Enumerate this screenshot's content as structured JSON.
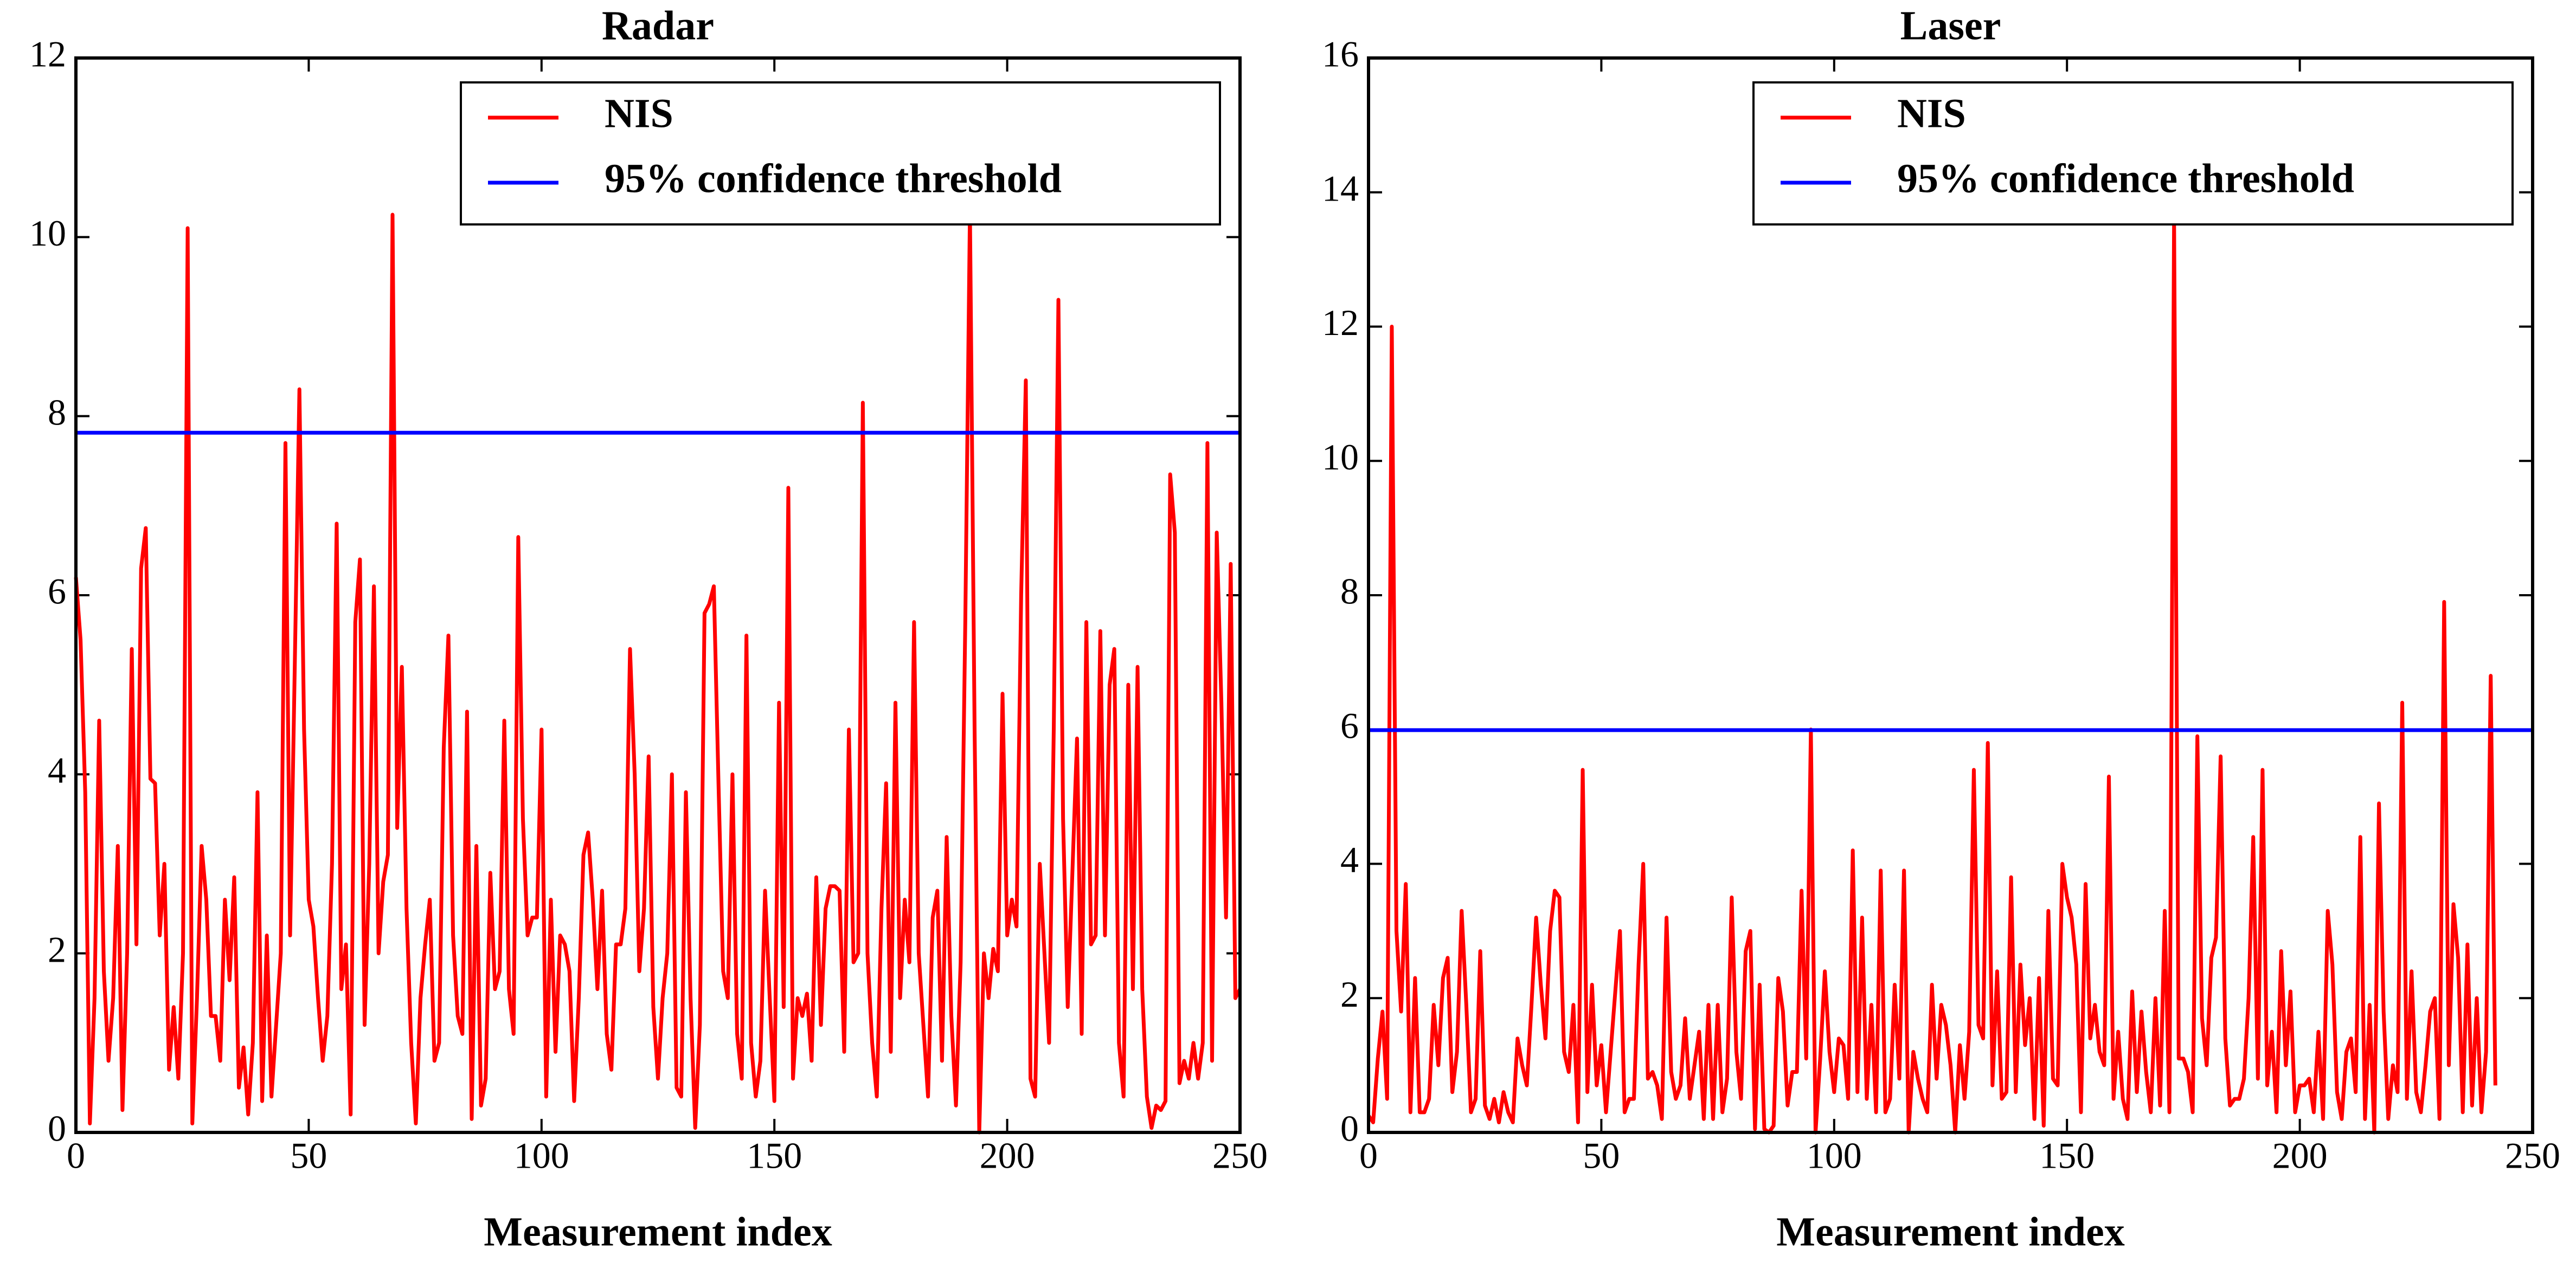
{
  "chart_data": [
    {
      "type": "line",
      "title": "Radar",
      "xlabel": "Measurement index",
      "xlim": [
        0,
        250
      ],
      "xticks": [
        0,
        50,
        100,
        150,
        200,
        250
      ],
      "ylim": [
        0,
        12
      ],
      "yticks": [
        0,
        2,
        4,
        6,
        8,
        10,
        12
      ],
      "legend": "upper right",
      "series": [
        {
          "name": "NIS",
          "color": "#ff0000",
          "values": [
            6.2,
            5.5,
            3.8,
            0.1,
            1.5,
            4.6,
            1.8,
            0.8,
            1.5,
            3.2,
            0.25,
            2.0,
            5.4,
            2.1,
            6.3,
            6.75,
            3.95,
            3.9,
            2.2,
            3.0,
            0.7,
            1.4,
            0.6,
            2.0,
            10.1,
            0.1,
            1.5,
            3.2,
            2.6,
            1.3,
            1.3,
            0.8,
            2.6,
            1.7,
            2.85,
            0.5,
            0.95,
            0.2,
            1.0,
            3.8,
            0.35,
            2.2,
            0.4,
            1.2,
            2.0,
            7.7,
            2.2,
            5.2,
            8.3,
            4.5,
            2.6,
            2.3,
            1.5,
            0.8,
            1.3,
            3.0,
            6.8,
            1.6,
            2.1,
            0.2,
            5.7,
            6.4,
            1.2,
            3.0,
            6.1,
            2.0,
            2.8,
            3.1,
            10.25,
            3.4,
            5.2,
            2.5,
            1.0,
            0.1,
            1.5,
            2.1,
            2.6,
            0.8,
            1.0,
            4.3,
            5.55,
            2.2,
            1.3,
            1.1,
            4.7,
            0.15,
            3.2,
            0.3,
            0.6,
            2.9,
            1.6,
            1.8,
            4.6,
            1.6,
            1.1,
            6.65,
            3.5,
            2.2,
            2.4,
            2.4,
            4.5,
            0.4,
            2.6,
            0.9,
            2.2,
            2.1,
            1.8,
            0.35,
            1.5,
            3.1,
            3.35,
            2.6,
            1.6,
            2.7,
            1.1,
            0.7,
            2.1,
            2.1,
            2.5,
            5.4,
            4.0,
            1.8,
            2.5,
            4.2,
            1.4,
            0.6,
            1.5,
            2.0,
            4.0,
            0.5,
            0.4,
            3.8,
            1.5,
            0.05,
            1.2,
            5.8,
            5.9,
            6.1,
            3.9,
            1.8,
            1.5,
            4.0,
            1.1,
            0.6,
            5.55,
            1.0,
            0.4,
            0.8,
            2.7,
            1.5,
            0.35,
            4.8,
            1.4,
            7.2,
            0.6,
            1.5,
            1.3,
            1.55,
            0.8,
            2.85,
            1.2,
            2.5,
            2.75,
            2.75,
            2.7,
            0.9,
            4.5,
            1.9,
            2.0,
            8.15,
            2.0,
            1.0,
            0.4,
            2.5,
            3.9,
            0.9,
            4.8,
            1.5,
            2.6,
            1.9,
            5.7,
            2.0,
            1.2,
            0.4,
            2.4,
            2.7,
            0.8,
            3.3,
            1.3,
            0.3,
            1.9,
            5.7,
            10.3,
            4.5,
            0.0,
            2.0,
            1.5,
            2.05,
            1.8,
            4.9,
            2.2,
            2.6,
            2.3,
            6.0,
            8.4,
            0.6,
            0.4,
            3.0,
            2.0,
            1.0,
            4.5,
            9.3,
            3.5,
            1.4,
            2.9,
            4.4,
            1.1,
            5.7,
            2.1,
            2.2,
            5.6,
            2.2,
            5.0,
            5.4,
            1.0,
            0.4,
            5.0,
            1.6,
            5.2,
            1.6,
            0.4,
            0.05,
            0.3,
            0.25,
            0.35,
            7.35,
            6.7,
            0.55,
            0.8,
            0.6,
            1.0,
            0.6,
            1.0,
            7.7,
            0.8,
            6.7,
            4.8,
            2.4,
            6.35,
            1.5,
            1.6
          ]
        }
      ],
      "hlines": [
        {
          "name": "95% confidence threshold",
          "color": "#0000ff",
          "value": 7.815
        }
      ]
    },
    {
      "type": "line",
      "title": "Laser",
      "xlabel": "Measurement index",
      "xlim": [
        0,
        250
      ],
      "xticks": [
        0,
        50,
        100,
        150,
        200,
        250
      ],
      "ylim": [
        0,
        16
      ],
      "yticks": [
        0,
        2,
        4,
        6,
        8,
        10,
        12,
        14,
        16
      ],
      "legend": "upper right",
      "series": [
        {
          "name": "NIS",
          "color": "#ff0000",
          "values": [
            0.25,
            0.15,
            1.1,
            1.8,
            0.5,
            12.0,
            3.0,
            1.8,
            3.7,
            0.3,
            2.3,
            0.3,
            0.3,
            0.5,
            1.9,
            1.0,
            2.3,
            2.6,
            0.6,
            1.2,
            3.3,
            1.9,
            0.3,
            0.5,
            2.7,
            0.4,
            0.2,
            0.5,
            0.15,
            0.6,
            0.3,
            0.15,
            1.4,
            1.0,
            0.7,
            1.9,
            3.2,
            2.2,
            1.4,
            3.0,
            3.6,
            3.5,
            1.2,
            0.9,
            1.9,
            0.15,
            5.4,
            0.6,
            2.2,
            0.7,
            1.3,
            0.3,
            1.2,
            2.1,
            3.0,
            0.3,
            0.5,
            0.5,
            2.5,
            4.0,
            0.8,
            0.9,
            0.7,
            0.2,
            3.2,
            0.9,
            0.5,
            0.7,
            1.7,
            0.5,
            1.0,
            1.5,
            0.2,
            1.9,
            0.2,
            1.9,
            0.3,
            0.8,
            3.5,
            1.2,
            0.5,
            2.7,
            3.0,
            0.05,
            2.2,
            0.05,
            0.0,
            0.1,
            2.3,
            1.8,
            0.4,
            0.9,
            0.9,
            3.6,
            1.1,
            6.0,
            0.0,
            1.1,
            2.4,
            1.2,
            0.6,
            1.4,
            1.3,
            0.5,
            4.2,
            0.6,
            3.2,
            0.5,
            1.9,
            0.3,
            3.9,
            0.3,
            0.5,
            2.2,
            0.8,
            3.9,
            0.0,
            1.2,
            0.8,
            0.5,
            0.3,
            2.2,
            0.8,
            1.9,
            1.6,
            1.0,
            0.0,
            1.3,
            0.5,
            1.5,
            5.4,
            1.6,
            1.4,
            5.8,
            0.7,
            2.4,
            0.5,
            0.6,
            3.8,
            0.6,
            2.5,
            1.3,
            2.0,
            0.2,
            2.3,
            0.1,
            3.3,
            0.8,
            0.7,
            4.0,
            3.5,
            3.2,
            2.5,
            0.3,
            3.7,
            1.4,
            1.9,
            1.2,
            1.0,
            5.3,
            0.5,
            1.5,
            0.5,
            0.2,
            2.1,
            0.6,
            1.8,
            0.9,
            0.3,
            2.0,
            0.4,
            3.3,
            0.3,
            13.6,
            1.1,
            1.1,
            0.9,
            0.3,
            5.9,
            1.7,
            1.0,
            2.6,
            2.9,
            5.6,
            1.4,
            0.4,
            0.5,
            0.5,
            0.8,
            2.0,
            4.4,
            0.8,
            5.4,
            0.7,
            1.5,
            0.3,
            2.7,
            1.0,
            2.1,
            0.3,
            0.7,
            0.7,
            0.8,
            0.3,
            1.5,
            0.2,
            3.3,
            2.5,
            0.6,
            0.2,
            1.2,
            1.4,
            0.6,
            4.4,
            0.2,
            1.9,
            0.0,
            4.9,
            1.8,
            0.2,
            1.0,
            0.6,
            6.4,
            0.5,
            2.4,
            0.6,
            0.3,
            1.0,
            1.8,
            2.0,
            0.2,
            7.9,
            1.0,
            3.4,
            2.6,
            0.3,
            2.8,
            0.4,
            2.0,
            0.3,
            1.2,
            6.8,
            0.7
          ]
        }
      ],
      "hlines": [
        {
          "name": "95% confidence threshold",
          "color": "#0000ff",
          "value": 5.991
        }
      ]
    }
  ]
}
